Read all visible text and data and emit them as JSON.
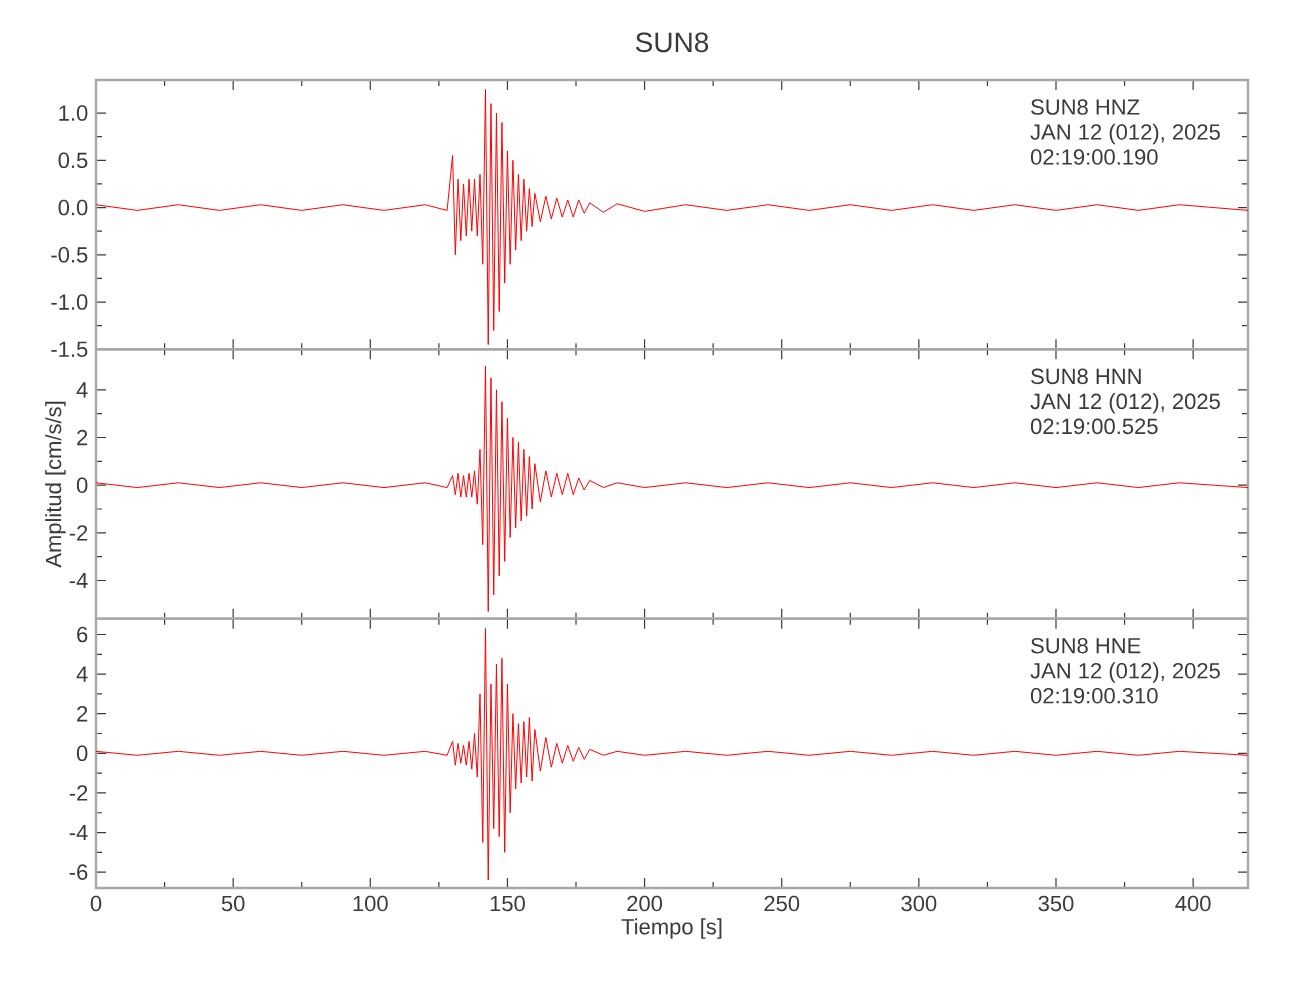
{
  "chart_data": [
    {
      "type": "line",
      "title": "SUN8",
      "annotations": [
        "SUN8   HNZ",
        "JAN 12 (012), 2025",
        "02:19:00.190"
      ],
      "tick_labels": "y",
      "x": [
        0,
        15,
        30,
        45,
        60,
        75,
        90,
        105,
        120,
        128,
        130,
        131,
        132,
        133,
        134,
        135,
        136,
        137,
        138,
        139,
        140,
        141,
        142,
        143,
        144,
        145,
        146,
        147,
        148,
        149,
        150,
        151,
        152,
        153,
        154,
        155,
        156,
        157,
        158,
        159,
        160,
        162,
        164,
        166,
        168,
        170,
        172,
        174,
        176,
        178,
        180,
        185,
        190,
        200,
        215,
        230,
        245,
        260,
        275,
        290,
        305,
        320,
        335,
        350,
        365,
        380,
        395,
        420
      ],
      "series": [
        {
          "color": "#ff0000",
          "values": [
            0.03,
            -0.03,
            0.03,
            -0.03,
            0.03,
            -0.03,
            0.03,
            -0.03,
            0.03,
            -0.03,
            0.55,
            -0.5,
            0.3,
            -0.35,
            0.25,
            -0.3,
            0.3,
            -0.25,
            0.3,
            -0.3,
            0.35,
            -0.6,
            1.25,
            -1.45,
            1.1,
            -1.3,
            1.0,
            -1.1,
            0.9,
            -0.8,
            0.6,
            -0.6,
            0.5,
            -0.45,
            0.35,
            -0.35,
            0.3,
            -0.25,
            0.2,
            -0.2,
            0.15,
            -0.15,
            0.12,
            -0.12,
            0.1,
            -0.1,
            0.08,
            -0.1,
            0.08,
            -0.06,
            0.05,
            -0.05,
            0.04,
            -0.04,
            0.03,
            -0.03,
            0.03,
            -0.03,
            0.03,
            -0.03,
            0.03,
            -0.03,
            0.03,
            -0.03,
            0.03,
            -0.03,
            0.03,
            -0.03
          ]
        }
      ],
      "xlim": [
        0,
        420
      ],
      "xticks": [
        0,
        50,
        100,
        150,
        200,
        250,
        300,
        350,
        400
      ],
      "ylim": [
        -1.5,
        1.35
      ],
      "yticks": [
        {
          "value": -1.5,
          "label": "-1.5"
        },
        {
          "value": -1.0,
          "label": "-1.0"
        },
        {
          "value": -0.5,
          "label": "-0.5"
        },
        {
          "value": 0,
          "label": "0.0"
        },
        {
          "value": 0.5,
          "label": "0.5"
        },
        {
          "value": 1.0,
          "label": "1.0"
        }
      ]
    },
    {
      "type": "line",
      "ylabel": "Amplitud [cm/s/s]",
      "annotations": [
        "SUN8   HNN",
        "JAN 12 (012), 2025",
        "02:19:00.525"
      ],
      "tick_labels": "y",
      "x": [
        0,
        15,
        30,
        45,
        60,
        75,
        90,
        105,
        120,
        128,
        130,
        131,
        132,
        133,
        134,
        135,
        136,
        137,
        138,
        139,
        140,
        141,
        142,
        143,
        144,
        145,
        146,
        147,
        148,
        149,
        150,
        151,
        152,
        153,
        154,
        155,
        156,
        157,
        158,
        159,
        160,
        162,
        164,
        166,
        168,
        170,
        172,
        174,
        176,
        178,
        180,
        185,
        190,
        200,
        215,
        230,
        245,
        260,
        275,
        290,
        305,
        320,
        335,
        350,
        365,
        380,
        395,
        420
      ],
      "series": [
        {
          "color": "#ff0000",
          "values": [
            0.1,
            -0.1,
            0.1,
            -0.1,
            0.1,
            -0.1,
            0.1,
            -0.1,
            0.1,
            -0.1,
            0.4,
            -0.4,
            0.5,
            -0.5,
            0.4,
            -0.5,
            0.5,
            -0.5,
            0.6,
            -0.8,
            1.5,
            -2.5,
            5.0,
            -5.3,
            4.5,
            -4.6,
            4.0,
            -3.8,
            3.5,
            -3.2,
            2.8,
            -2.2,
            2.0,
            -1.8,
            1.8,
            -1.5,
            1.5,
            -1.3,
            1.2,
            -1.0,
            0.9,
            -0.7,
            0.6,
            -0.5,
            0.5,
            -0.4,
            0.5,
            -0.4,
            0.3,
            -0.2,
            0.2,
            -0.1,
            0.1,
            -0.1,
            0.1,
            -0.1,
            0.1,
            -0.1,
            0.1,
            -0.1,
            0.1,
            -0.1,
            0.1,
            -0.1,
            0.1,
            -0.1,
            0.1,
            -0.1
          ]
        }
      ],
      "xlim": [
        0,
        420
      ],
      "xticks": [
        0,
        50,
        100,
        150,
        200,
        250,
        300,
        350,
        400
      ],
      "ylim": [
        -5.6,
        5.7
      ],
      "yticks": [
        -4,
        -2,
        0,
        2,
        4
      ]
    },
    {
      "type": "line",
      "xlabel": "Tiempo [s]",
      "annotations": [
        "SUN8   HNE",
        "JAN 12 (012), 2025",
        "02:19:00.310"
      ],
      "x": [
        0,
        15,
        30,
        45,
        60,
        75,
        90,
        105,
        120,
        128,
        130,
        131,
        132,
        133,
        134,
        135,
        136,
        137,
        138,
        139,
        140,
        141,
        142,
        143,
        144,
        145,
        146,
        147,
        148,
        149,
        150,
        151,
        152,
        153,
        154,
        155,
        156,
        157,
        158,
        159,
        160,
        162,
        164,
        166,
        168,
        170,
        172,
        174,
        176,
        178,
        180,
        185,
        190,
        200,
        215,
        230,
        245,
        260,
        275,
        290,
        305,
        320,
        335,
        350,
        365,
        380,
        395,
        420
      ],
      "series": [
        {
          "color": "#ff0000",
          "values": [
            0.1,
            -0.1,
            0.1,
            -0.1,
            0.1,
            -0.1,
            0.1,
            -0.1,
            0.1,
            -0.1,
            0.6,
            -0.6,
            0.5,
            -0.5,
            0.4,
            -0.6,
            0.6,
            -0.8,
            1.0,
            -1.2,
            3.0,
            -4.5,
            6.3,
            -6.4,
            3.5,
            -3.8,
            4.5,
            -4.2,
            4.8,
            -5.0,
            3.5,
            -3.0,
            2.0,
            -1.8,
            1.5,
            -1.5,
            1.6,
            -1.2,
            1.8,
            -1.4,
            1.2,
            -0.9,
            0.8,
            -0.7,
            0.5,
            -0.5,
            0.4,
            -0.4,
            0.3,
            -0.3,
            0.2,
            -0.1,
            0.1,
            -0.1,
            0.1,
            -0.1,
            0.1,
            -0.1,
            0.1,
            -0.1,
            0.1,
            -0.1,
            0.1,
            -0.1,
            0.1,
            -0.1,
            0.1,
            -0.1
          ]
        }
      ],
      "xlim": [
        0,
        420
      ],
      "xticks": [
        0,
        50,
        100,
        150,
        200,
        250,
        300,
        350,
        400
      ],
      "ylim": [
        -6.8,
        6.8
      ],
      "yticks": [
        -6,
        -4,
        -2,
        0,
        2,
        4,
        6
      ]
    }
  ]
}
